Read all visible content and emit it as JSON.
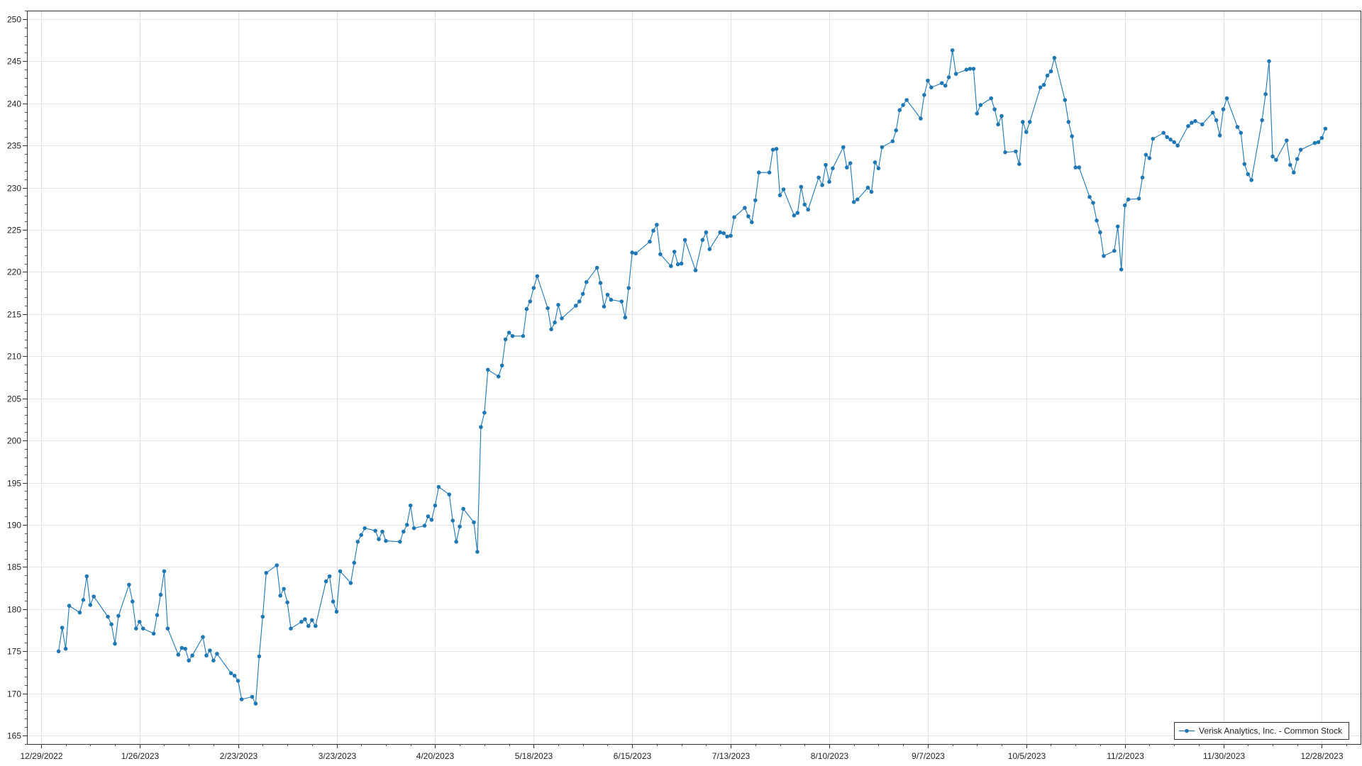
{
  "chart_data": {
    "type": "line",
    "title": "",
    "xlabel": "",
    "ylabel": "",
    "ylim": [
      164,
      251
    ],
    "xlim": [
      "2022-12-25",
      "2024-01-08"
    ],
    "grid": true,
    "legend_position": "bottom-right",
    "color": "#1f77b4",
    "y_ticks": [
      165,
      170,
      175,
      180,
      185,
      190,
      195,
      200,
      205,
      210,
      215,
      220,
      225,
      230,
      235,
      240,
      245,
      250
    ],
    "x_ticks": [
      {
        "date": "2022-12-29",
        "label": "12/29/2022"
      },
      {
        "date": "2023-01-26",
        "label": "1/26/2023"
      },
      {
        "date": "2023-02-23",
        "label": "2/23/2023"
      },
      {
        "date": "2023-03-23",
        "label": "3/23/2023"
      },
      {
        "date": "2023-04-20",
        "label": "4/20/2023"
      },
      {
        "date": "2023-05-18",
        "label": "5/18/2023"
      },
      {
        "date": "2023-06-15",
        "label": "6/15/2023"
      },
      {
        "date": "2023-07-13",
        "label": "7/13/2023"
      },
      {
        "date": "2023-08-10",
        "label": "8/10/2023"
      },
      {
        "date": "2023-09-07",
        "label": "9/7/2023"
      },
      {
        "date": "2023-10-05",
        "label": "10/5/2023"
      },
      {
        "date": "2023-11-02",
        "label": "11/2/2023"
      },
      {
        "date": "2023-11-30",
        "label": "11/30/2023"
      },
      {
        "date": "2023-12-28",
        "label": "12/28/2023"
      }
    ],
    "series": [
      {
        "name": "Verisk Analytics, Inc. - Common Stock",
        "x": [
          "2023-01-03",
          "2023-01-04",
          "2023-01-05",
          "2023-01-06",
          "2023-01-09",
          "2023-01-10",
          "2023-01-11",
          "2023-01-12",
          "2023-01-13",
          "2023-01-17",
          "2023-01-18",
          "2023-01-19",
          "2023-01-20",
          "2023-01-23",
          "2023-01-24",
          "2023-01-25",
          "2023-01-26",
          "2023-01-27",
          "2023-01-30",
          "2023-01-31",
          "2023-02-01",
          "2023-02-02",
          "2023-02-03",
          "2023-02-06",
          "2023-02-07",
          "2023-02-08",
          "2023-02-09",
          "2023-02-10",
          "2023-02-13",
          "2023-02-14",
          "2023-02-15",
          "2023-02-16",
          "2023-02-17",
          "2023-02-21",
          "2023-02-22",
          "2023-02-23",
          "2023-02-24",
          "2023-02-27",
          "2023-02-28",
          "2023-03-01",
          "2023-03-02",
          "2023-03-03",
          "2023-03-06",
          "2023-03-07",
          "2023-03-08",
          "2023-03-09",
          "2023-03-10",
          "2023-03-13",
          "2023-03-14",
          "2023-03-15",
          "2023-03-16",
          "2023-03-17",
          "2023-03-20",
          "2023-03-21",
          "2023-03-22",
          "2023-03-23",
          "2023-03-24",
          "2023-03-27",
          "2023-03-28",
          "2023-03-29",
          "2023-03-30",
          "2023-03-31",
          "2023-04-03",
          "2023-04-04",
          "2023-04-05",
          "2023-04-06",
          "2023-04-10",
          "2023-04-11",
          "2023-04-12",
          "2023-04-13",
          "2023-04-14",
          "2023-04-17",
          "2023-04-18",
          "2023-04-19",
          "2023-04-20",
          "2023-04-21",
          "2023-04-24",
          "2023-04-25",
          "2023-04-26",
          "2023-04-27",
          "2023-04-28",
          "2023-05-01",
          "2023-05-02",
          "2023-05-03",
          "2023-05-04",
          "2023-05-05",
          "2023-05-08",
          "2023-05-09",
          "2023-05-10",
          "2023-05-11",
          "2023-05-12",
          "2023-05-15",
          "2023-05-16",
          "2023-05-17",
          "2023-05-18",
          "2023-05-19",
          "2023-05-22",
          "2023-05-23",
          "2023-05-24",
          "2023-05-25",
          "2023-05-26",
          "2023-05-30",
          "2023-05-31",
          "2023-06-01",
          "2023-06-02",
          "2023-06-05",
          "2023-06-06",
          "2023-06-07",
          "2023-06-08",
          "2023-06-09",
          "2023-06-12",
          "2023-06-13",
          "2023-06-14",
          "2023-06-15",
          "2023-06-16",
          "2023-06-20",
          "2023-06-21",
          "2023-06-22",
          "2023-06-23",
          "2023-06-26",
          "2023-06-27",
          "2023-06-28",
          "2023-06-29",
          "2023-06-30",
          "2023-07-03",
          "2023-07-05",
          "2023-07-06",
          "2023-07-07",
          "2023-07-10",
          "2023-07-11",
          "2023-07-12",
          "2023-07-13",
          "2023-07-14",
          "2023-07-17",
          "2023-07-18",
          "2023-07-19",
          "2023-07-20",
          "2023-07-21",
          "2023-07-24",
          "2023-07-25",
          "2023-07-26",
          "2023-07-27",
          "2023-07-28",
          "2023-07-31",
          "2023-08-01",
          "2023-08-02",
          "2023-08-03",
          "2023-08-04",
          "2023-08-07",
          "2023-08-08",
          "2023-08-09",
          "2023-08-10",
          "2023-08-11",
          "2023-08-14",
          "2023-08-15",
          "2023-08-16",
          "2023-08-17",
          "2023-08-18",
          "2023-08-21",
          "2023-08-22",
          "2023-08-23",
          "2023-08-24",
          "2023-08-25",
          "2023-08-28",
          "2023-08-29",
          "2023-08-30",
          "2023-08-31",
          "2023-09-01",
          "2023-09-05",
          "2023-09-06",
          "2023-09-07",
          "2023-09-08",
          "2023-09-11",
          "2023-09-12",
          "2023-09-13",
          "2023-09-14",
          "2023-09-15",
          "2023-09-18",
          "2023-09-19",
          "2023-09-20",
          "2023-09-21",
          "2023-09-22",
          "2023-09-25",
          "2023-09-26",
          "2023-09-27",
          "2023-09-28",
          "2023-09-29",
          "2023-10-02",
          "2023-10-03",
          "2023-10-04",
          "2023-10-05",
          "2023-10-06",
          "2023-10-09",
          "2023-10-10",
          "2023-10-11",
          "2023-10-12",
          "2023-10-13",
          "2023-10-16",
          "2023-10-17",
          "2023-10-18",
          "2023-10-19",
          "2023-10-20",
          "2023-10-23",
          "2023-10-24",
          "2023-10-25",
          "2023-10-26",
          "2023-10-27",
          "2023-10-30",
          "2023-10-31",
          "2023-11-01",
          "2023-11-02",
          "2023-11-03",
          "2023-11-06",
          "2023-11-07",
          "2023-11-08",
          "2023-11-09",
          "2023-11-10",
          "2023-11-13",
          "2023-11-14",
          "2023-11-15",
          "2023-11-16",
          "2023-11-17",
          "2023-11-20",
          "2023-11-21",
          "2023-11-22",
          "2023-11-24",
          "2023-11-27",
          "2023-11-28",
          "2023-11-29",
          "2023-11-30",
          "2023-12-01",
          "2023-12-04",
          "2023-12-05",
          "2023-12-06",
          "2023-12-07",
          "2023-12-08",
          "2023-12-11",
          "2023-12-12",
          "2023-12-13",
          "2023-12-14",
          "2023-12-15",
          "2023-12-18",
          "2023-12-19",
          "2023-12-20",
          "2023-12-21",
          "2023-12-22",
          "2023-12-26",
          "2023-12-27",
          "2023-12-28",
          "2023-12-29"
        ],
        "values": [
          175.0,
          177.8,
          175.3,
          180.4,
          179.6,
          181.1,
          183.9,
          180.5,
          181.5,
          179.1,
          178.2,
          175.9,
          179.2,
          182.9,
          180.9,
          177.7,
          178.5,
          177.7,
          177.1,
          179.3,
          181.7,
          184.5,
          177.7,
          174.6,
          175.4,
          175.3,
          173.9,
          174.5,
          176.7,
          174.5,
          175.1,
          173.9,
          174.7,
          172.4,
          172.1,
          171.5,
          169.3,
          169.6,
          168.8,
          174.4,
          179.1,
          184.3,
          185.2,
          181.6,
          182.4,
          180.8,
          177.7,
          178.5,
          178.8,
          178.0,
          178.7,
          178.0,
          183.3,
          183.9,
          180.9,
          179.7,
          184.5,
          183.1,
          185.5,
          188.0,
          188.8,
          189.6,
          189.3,
          188.3,
          189.2,
          188.1,
          188.0,
          189.2,
          190.0,
          192.3,
          189.6,
          189.9,
          191.0,
          190.6,
          192.3,
          194.5,
          193.6,
          190.5,
          188.0,
          189.8,
          191.9,
          190.3,
          186.8,
          201.6,
          203.3,
          208.4,
          207.6,
          208.9,
          212.0,
          212.8,
          212.4,
          212.4,
          215.6,
          216.5,
          218.1,
          219.5,
          215.7,
          213.2,
          214.0,
          216.1,
          214.5,
          216.0,
          216.5,
          217.4,
          218.8,
          220.5,
          218.7,
          215.9,
          217.3,
          216.7,
          216.5,
          214.6,
          218.1,
          222.3,
          222.2,
          223.6,
          224.9,
          225.6,
          222.1,
          220.7,
          222.4,
          220.9,
          221.0,
          223.8,
          220.2,
          223.8,
          224.7,
          222.7,
          224.7,
          224.6,
          224.2,
          224.3,
          226.5,
          227.6,
          226.6,
          225.9,
          228.5,
          231.8,
          231.8,
          234.5,
          234.6,
          229.1,
          229.8,
          226.7,
          227.0,
          230.1,
          228.0,
          227.4,
          231.2,
          230.3,
          232.7,
          230.7,
          232.3,
          234.8,
          232.4,
          232.9,
          228.3,
          228.6,
          230.0,
          229.5,
          233.0,
          232.3,
          234.8,
          235.5,
          236.8,
          239.2,
          239.8,
          240.4,
          238.2,
          241.0,
          242.7,
          241.9,
          242.4,
          242.1,
          243.1,
          246.3,
          243.5,
          244.0,
          244.1,
          244.1,
          238.8,
          239.8,
          240.6,
          239.3,
          237.5,
          238.5,
          234.2,
          234.3,
          232.8,
          237.8,
          236.6,
          237.8,
          241.9,
          242.2,
          243.3,
          243.8,
          245.4,
          240.4,
          237.8,
          236.1,
          232.4,
          232.4,
          228.9,
          228.2,
          226.1,
          224.7,
          221.9,
          222.5,
          225.4,
          220.3,
          227.9,
          228.6,
          228.7,
          231.2,
          233.9,
          233.5,
          235.8,
          236.5,
          236.0,
          235.7,
          235.4,
          235.0,
          237.3,
          237.7,
          237.9,
          237.5,
          238.9,
          238.0,
          236.2,
          239.3,
          240.6,
          237.2,
          236.5,
          232.8,
          231.6,
          230.9,
          238.0,
          241.1,
          245.0,
          233.7,
          233.3,
          235.6,
          232.7,
          231.8,
          233.4,
          234.5,
          235.3,
          235.4,
          235.9,
          237.0
        ]
      }
    ]
  }
}
